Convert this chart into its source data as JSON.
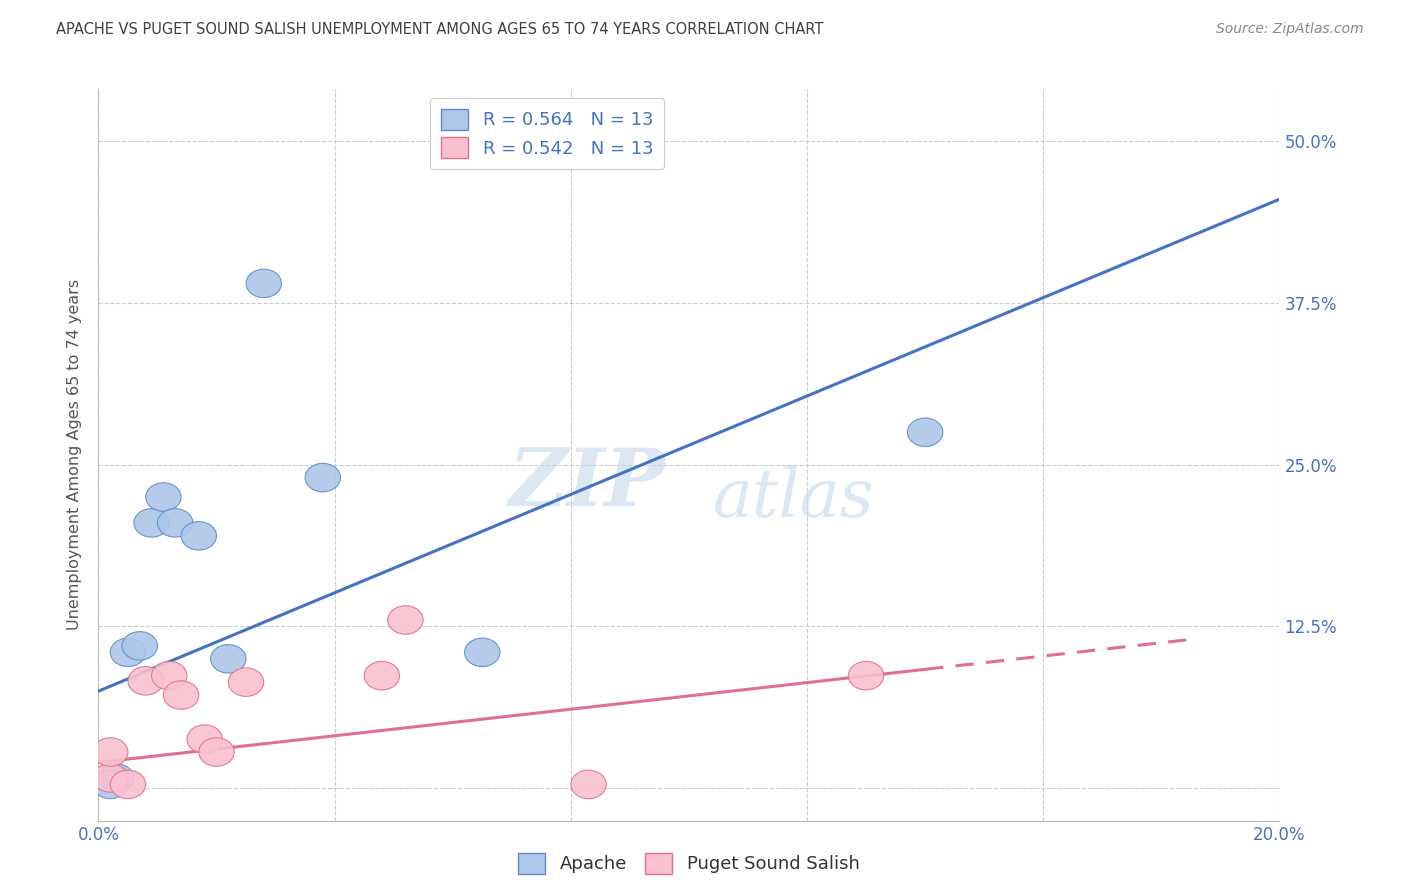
{
  "title": "APACHE VS PUGET SOUND SALISH UNEMPLOYMENT AMONG AGES 65 TO 74 YEARS CORRELATION CHART",
  "source": "Source: ZipAtlas.com",
  "xlabel": "",
  "ylabel": "Unemployment Among Ages 65 to 74 years",
  "xlim": [
    0.0,
    0.2
  ],
  "ylim": [
    -0.025,
    0.54
  ],
  "xticks": [
    0.0,
    0.04,
    0.08,
    0.12,
    0.16,
    0.2
  ],
  "xticklabels": [
    "0.0%",
    "",
    "",
    "",
    "",
    "20.0%"
  ],
  "yticks": [
    0.0,
    0.125,
    0.25,
    0.375,
    0.5
  ],
  "yticklabels_right": [
    "",
    "12.5%",
    "25.0%",
    "37.5%",
    "50.0%"
  ],
  "apache_color": "#aec6e8",
  "apache_edge_color": "#5b8ec9",
  "apache_line_color": "#4472c4",
  "puget_color": "#f9c0d0",
  "puget_edge_color": "#e07090",
  "puget_line_color": "#e07090",
  "apache_R": 0.564,
  "apache_N": 13,
  "puget_R": 0.542,
  "puget_N": 13,
  "apache_x": [
    0.003,
    0.005,
    0.007,
    0.009,
    0.011,
    0.013,
    0.017,
    0.022,
    0.028,
    0.038,
    0.065,
    0.14,
    0.002
  ],
  "apache_y": [
    0.008,
    0.105,
    0.11,
    0.205,
    0.225,
    0.205,
    0.195,
    0.1,
    0.39,
    0.24,
    0.105,
    0.275,
    0.003
  ],
  "puget_x": [
    0.002,
    0.005,
    0.008,
    0.012,
    0.014,
    0.018,
    0.02,
    0.025,
    0.048,
    0.052,
    0.083,
    0.13,
    0.002
  ],
  "puget_y": [
    0.008,
    0.003,
    0.083,
    0.087,
    0.072,
    0.038,
    0.028,
    0.082,
    0.087,
    0.13,
    0.003,
    0.087,
    0.028
  ],
  "apache_line_x": [
    0.0,
    0.2
  ],
  "apache_line_y": [
    0.075,
    0.455
  ],
  "puget_line_x": [
    0.0,
    0.185
  ],
  "puget_line_solid_end": 0.14,
  "puget_line_y": [
    0.02,
    0.115
  ],
  "watermark_line1": "ZIP",
  "watermark_line2": "atlas",
  "background_color": "#ffffff",
  "grid_color": "#cccccc",
  "title_color": "#404040",
  "axis_label_color": "#555555",
  "tick_color": "#4472c4",
  "legend_color": "#4472c4"
}
